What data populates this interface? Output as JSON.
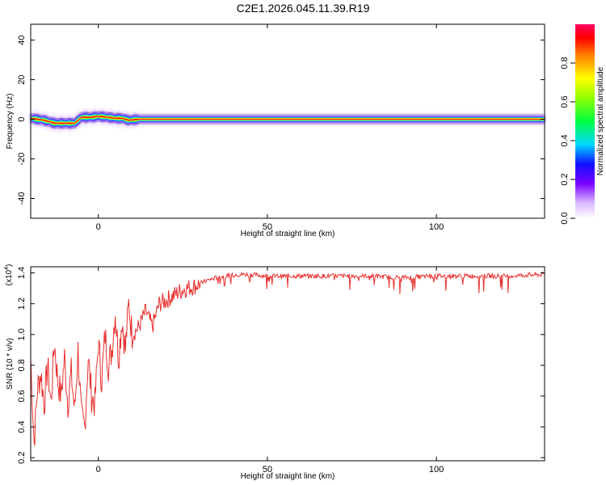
{
  "title": "C2E1.2026.045.11.39.R19",
  "chart_data": [
    {
      "type": "heatmap",
      "xlabel": "Height of straight line (km)",
      "ylabel": "Frequency (Hz)",
      "xlim": [
        -20,
        132
      ],
      "ylim": [
        -50,
        48
      ],
      "xticks": [
        "0",
        "50",
        "100"
      ],
      "xtick_values": [
        0,
        50,
        100
      ],
      "yticks": [
        "-40",
        "-20",
        "0",
        "20",
        "40"
      ],
      "ytick_values": [
        -40,
        -20,
        0,
        20,
        40
      ],
      "colorbar": {
        "label": "Normalized spectral amplitude",
        "range": [
          0,
          1
        ],
        "ticks": [
          "0.0",
          "0.2",
          "0.4",
          "0.6",
          "0.8"
        ],
        "tick_values": [
          0,
          0.2,
          0.4,
          0.6,
          0.8
        ]
      },
      "peak_frequency_profile": {
        "x": [
          -20,
          -16,
          -13,
          -10,
          -7,
          -5,
          -2,
          0,
          3,
          5,
          7,
          9,
          12,
          20,
          40,
          60,
          80,
          100,
          120,
          132
        ],
        "frequency": [
          0.5,
          -0.5,
          -2,
          -2,
          -2,
          1,
          1,
          1.5,
          1,
          0.5,
          0.5,
          -0.5,
          0,
          0,
          0,
          0,
          0,
          0,
          0,
          0
        ]
      }
    },
    {
      "type": "line",
      "xlabel": "Height of straight line (km)",
      "ylabel": "SNR (10 * v/v)",
      "multiplier": "(x10",
      "multiplier_exp": "4",
      "multiplier_close": ")",
      "xlim": [
        -20,
        132
      ],
      "ylim": [
        0.18,
        1.44
      ],
      "xticks": [
        "0",
        "50",
        "100"
      ],
      "xtick_values": [
        0,
        50,
        100
      ],
      "yticks": [
        "0.2",
        "0.4",
        "0.6",
        "0.8",
        "1.0",
        "1.2",
        "1.4"
      ],
      "ytick_values": [
        0.2,
        0.4,
        0.6,
        0.8,
        1.0,
        1.2,
        1.4
      ],
      "color": "#e8302f",
      "series": [
        {
          "x": [
            -20,
            -19,
            -18,
            -17,
            -16,
            -15,
            -14,
            -13,
            -12,
            -11,
            -10,
            -9,
            -8,
            -7,
            -6,
            -5,
            -4,
            -3,
            -2,
            -1,
            0,
            1,
            2,
            3,
            4,
            5,
            6,
            7,
            8,
            9,
            10,
            12,
            14,
            16,
            18,
            20,
            22,
            24,
            26,
            28,
            30,
            32,
            35,
            38,
            40,
            45,
            50,
            55,
            60,
            70,
            80,
            90,
            100,
            110,
            120,
            132
          ],
          "values": [
            0.85,
            0.3,
            0.65,
            0.75,
            0.55,
            0.8,
            0.55,
            0.95,
            0.7,
            0.6,
            0.85,
            0.55,
            0.75,
            0.5,
            0.9,
            0.45,
            0.4,
            0.85,
            0.6,
            0.55,
            0.95,
            0.7,
            1.0,
            0.8,
            0.9,
            1.15,
            0.85,
            1.1,
            0.9,
            1.2,
            1.0,
            1.05,
            1.15,
            1.05,
            1.2,
            1.22,
            1.25,
            1.28,
            1.3,
            1.31,
            1.33,
            1.35,
            1.37,
            1.38,
            1.39,
            1.39,
            1.38,
            1.38,
            1.38,
            1.38,
            1.38,
            1.37,
            1.38,
            1.38,
            1.38,
            1.39
          ]
        }
      ]
    }
  ]
}
